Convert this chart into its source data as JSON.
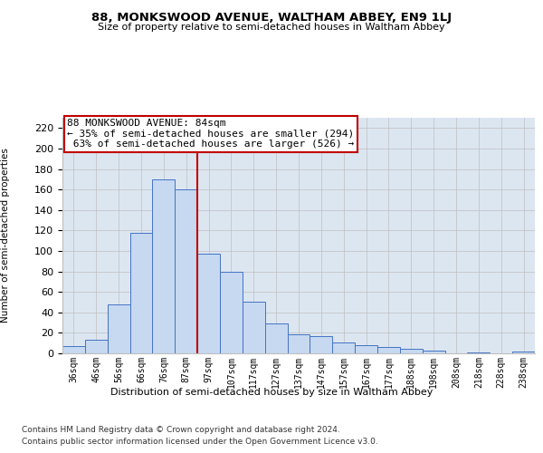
{
  "title1": "88, MONKSWOOD AVENUE, WALTHAM ABBEY, EN9 1LJ",
  "title2": "Size of property relative to semi-detached houses in Waltham Abbey",
  "xlabel": "Distribution of semi-detached houses by size in Waltham Abbey",
  "ylabel": "Number of semi-detached properties",
  "footnote1": "Contains HM Land Registry data © Crown copyright and database right 2024.",
  "footnote2": "Contains public sector information licensed under the Open Government Licence v3.0.",
  "annotation_title": "88 MONKSWOOD AVENUE: 84sqm",
  "annotation_line1": "← 35% of semi-detached houses are smaller (294)",
  "annotation_line2": " 63% of semi-detached houses are larger (526) →",
  "bar_labels": [
    "36sqm",
    "46sqm",
    "56sqm",
    "66sqm",
    "76sqm",
    "87sqm",
    "97sqm",
    "107sqm",
    "117sqm",
    "127sqm",
    "137sqm",
    "147sqm",
    "157sqm",
    "167sqm",
    "177sqm",
    "188sqm",
    "198sqm",
    "208sqm",
    "218sqm",
    "228sqm",
    "238sqm"
  ],
  "bar_heights": [
    7,
    13,
    48,
    118,
    170,
    160,
    97,
    80,
    50,
    29,
    19,
    17,
    11,
    8,
    6,
    4,
    3,
    0,
    1,
    0,
    2
  ],
  "bar_color": "#c6d9f1",
  "bar_edge_color": "#4472c4",
  "vline_index": 5,
  "vline_color": "#c00000",
  "annotation_box_color": "#c00000",
  "background_color": "#ffffff",
  "grid_color": "#bfbfbf",
  "ylim": [
    0,
    230
  ],
  "yticks": [
    0,
    20,
    40,
    60,
    80,
    100,
    120,
    140,
    160,
    180,
    200,
    220
  ]
}
